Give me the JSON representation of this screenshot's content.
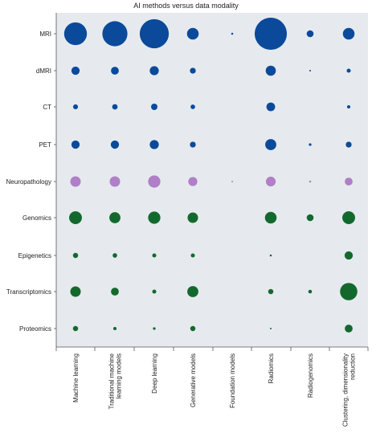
{
  "chart_data": {
    "type": "bubble-matrix",
    "title": "AI methods versus data modality",
    "x_categories": [
      "Machine learning",
      "Traditional machine learning models",
      "Deep learning",
      "Generative models",
      "Foundation models",
      "Radiomics",
      "Radiogenomics",
      "Clustering, dimensionality reduction"
    ],
    "x_tick_lines": [
      [
        "Machine learning"
      ],
      [
        "Traditional machine",
        "learning models"
      ],
      [
        "Deep learning"
      ],
      [
        "Generative models"
      ],
      [
        "Foundation models"
      ],
      [
        "Radiomics"
      ],
      [
        "Radiogenomics"
      ],
      [
        "Clustering, dimensionality",
        "reduction"
      ]
    ],
    "y_categories": [
      "MRI",
      "dMRI",
      "CT",
      "PET",
      "Neuropathology",
      "Genomics",
      "Epigenetics",
      "Transcriptomics",
      "Proteomics"
    ],
    "colors": {
      "MRI": "#0b4a9a",
      "dMRI": "#0b4a9a",
      "CT": "#0b4a9a",
      "PET": "#0b4a9a",
      "Neuropathology": "#b07fc8",
      "Genomics": "#13692d",
      "Epigenetics": "#13692d",
      "Transcriptomics": "#13692d",
      "Proteomics": "#13692d"
    },
    "background": "#e6eaee",
    "size_unit": "relative bubble area (estimated)",
    "values": [
      [
        38,
        46,
        62,
        10,
        0.3,
        76,
        3.5,
        10
      ],
      [
        5,
        4.5,
        6,
        2.5,
        0,
        7.5,
        0.2,
        1.2
      ],
      [
        1.8,
        2.2,
        3,
        1.5,
        0,
        5.5,
        0,
        0.8
      ],
      [
        5,
        5,
        6,
        2.5,
        0,
        9,
        0.5,
        2.5
      ],
      [
        8,
        8,
        11,
        6,
        0.2,
        7,
        0.3,
        4.5
      ],
      [
        12,
        9,
        11,
        8,
        0,
        10,
        3.5,
        12
      ],
      [
        2,
        1.5,
        1.2,
        1.2,
        0,
        0.3,
        0,
        5
      ],
      [
        8,
        4.5,
        1.2,
        9,
        0,
        2,
        1,
        22
      ],
      [
        2,
        0.8,
        0.5,
        2,
        0,
        0.2,
        0,
        4.5
      ]
    ]
  }
}
